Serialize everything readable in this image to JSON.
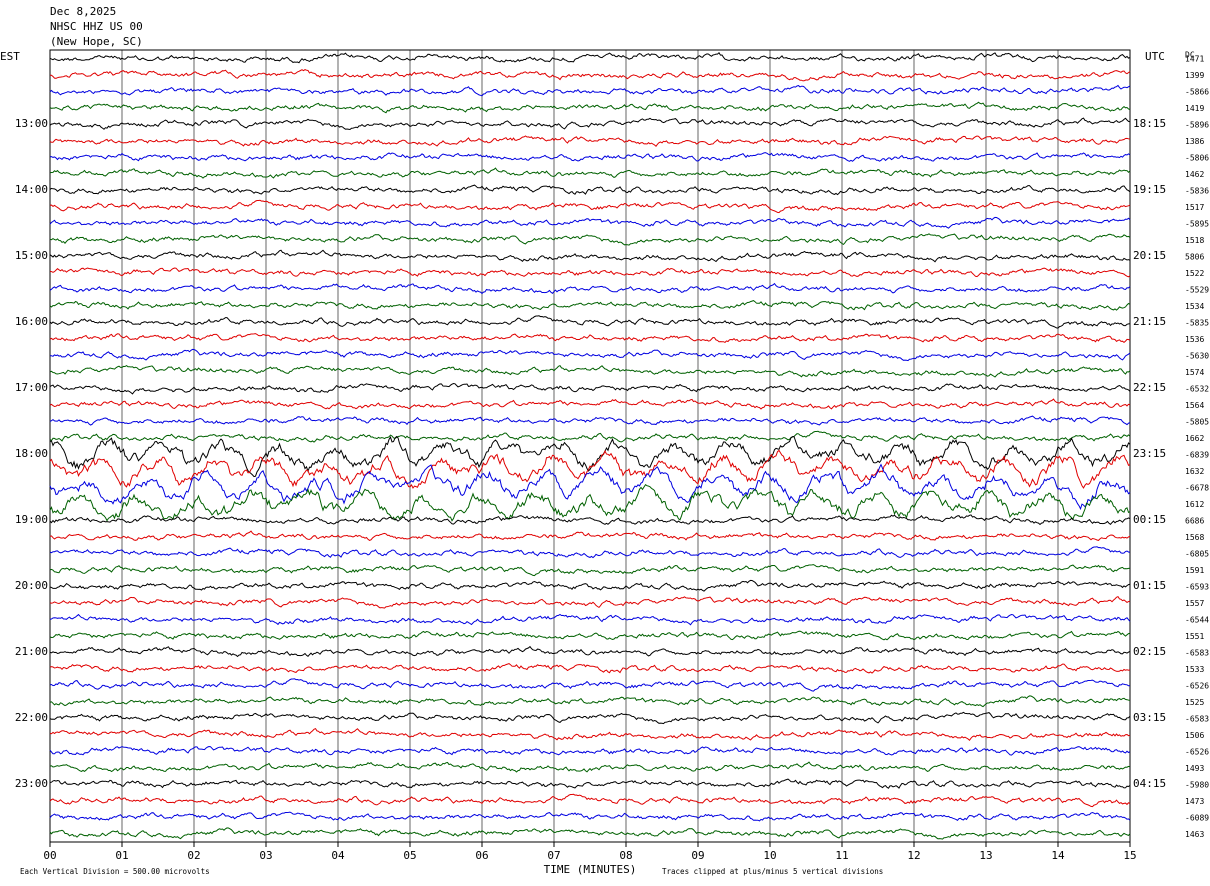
{
  "header": {
    "date": "Dec 8,2025",
    "station": "NHSC HHZ US 00",
    "location": "(New Hope, SC)"
  },
  "left_zone": "EST",
  "right_zone": "UTC",
  "dc_header": "DC",
  "left_labels": [
    "13:00",
    "14:00",
    "15:00",
    "16:00",
    "17:00",
    "18:00",
    "19:00",
    "20:00",
    "21:00",
    "22:00",
    "23:00"
  ],
  "right_labels": [
    "18:15",
    "19:15",
    "20:15",
    "21:15",
    "22:15",
    "23:15",
    "00:15",
    "01:15",
    "02:15",
    "03:15",
    "04:15"
  ],
  "dc_values": [
    1471,
    1399,
    -5866,
    1419,
    -5896,
    1386,
    -5806,
    1462,
    -5836,
    1517,
    -5895,
    1518,
    5806,
    1522,
    -5529,
    1534,
    -5835,
    1536,
    -5630,
    1574,
    -6532,
    1564,
    -5805,
    1662,
    -6839,
    1632,
    -6678,
    1612,
    6686,
    1568,
    -6805,
    1591,
    -6593,
    1557,
    -6544,
    1551,
    -6583,
    1533,
    -6526,
    1525,
    -6583,
    1506,
    -6526,
    1493,
    -5980,
    1473,
    -6089,
    1463
  ],
  "x_axis": {
    "labels": [
      "00",
      "01",
      "02",
      "03",
      "04",
      "05",
      "06",
      "07",
      "08",
      "09",
      "10",
      "11",
      "12",
      "13",
      "14",
      "15"
    ],
    "title": "TIME (MINUTES)"
  },
  "footer": {
    "scale": "Each Vertical Division =  500.00 microvolts",
    "clip": "Traces clipped at plus/minus 5 vertical divisions"
  }
}
